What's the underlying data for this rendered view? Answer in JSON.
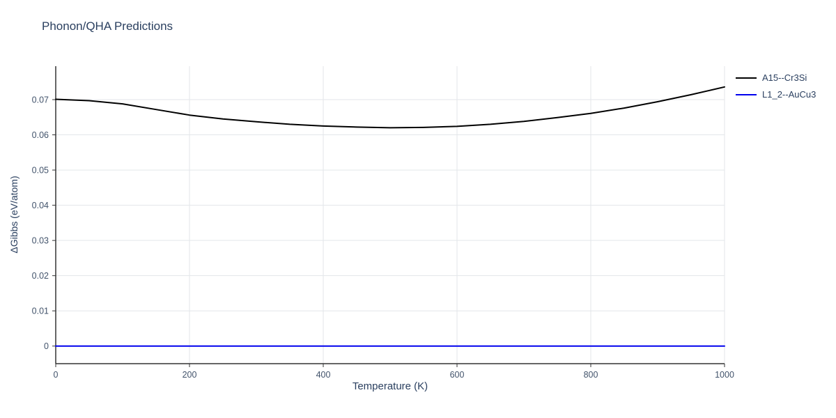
{
  "chart_data": {
    "type": "line",
    "title": "Phonon/QHA Predictions",
    "xlabel": "Temperature (K)",
    "ylabel": "ΔGibbs (eV/atom)",
    "xlim": [
      0,
      1000
    ],
    "ylim": [
      -0.005,
      0.0795
    ],
    "x_ticks": [
      0,
      200,
      400,
      600,
      800,
      1000
    ],
    "y_ticks": [
      0,
      0.01,
      0.02,
      0.03,
      0.04,
      0.05,
      0.06,
      0.07
    ],
    "grid": true,
    "legend_position": "top-right-outside",
    "colors": {
      "title_text": "#2a3f5f",
      "tick_text": "#42536b",
      "axis_line": "#333333",
      "gridline": "#e3e6ea"
    },
    "series": [
      {
        "name": "A15--Cr3Si",
        "color": "#000000",
        "x": [
          0,
          50,
          100,
          150,
          200,
          250,
          300,
          350,
          400,
          450,
          500,
          550,
          600,
          650,
          700,
          750,
          800,
          850,
          900,
          950,
          1000
        ],
        "y": [
          0.0701,
          0.0697,
          0.0688,
          0.0672,
          0.0656,
          0.0645,
          0.0637,
          0.063,
          0.0625,
          0.0622,
          0.062,
          0.0621,
          0.0624,
          0.063,
          0.0638,
          0.0649,
          0.0661,
          0.0676,
          0.0694,
          0.0714,
          0.0736
        ]
      },
      {
        "name": "L1_2--AuCu3",
        "color": "#0000ee",
        "x": [
          0,
          1000
        ],
        "y": [
          0,
          0
        ]
      }
    ]
  }
}
